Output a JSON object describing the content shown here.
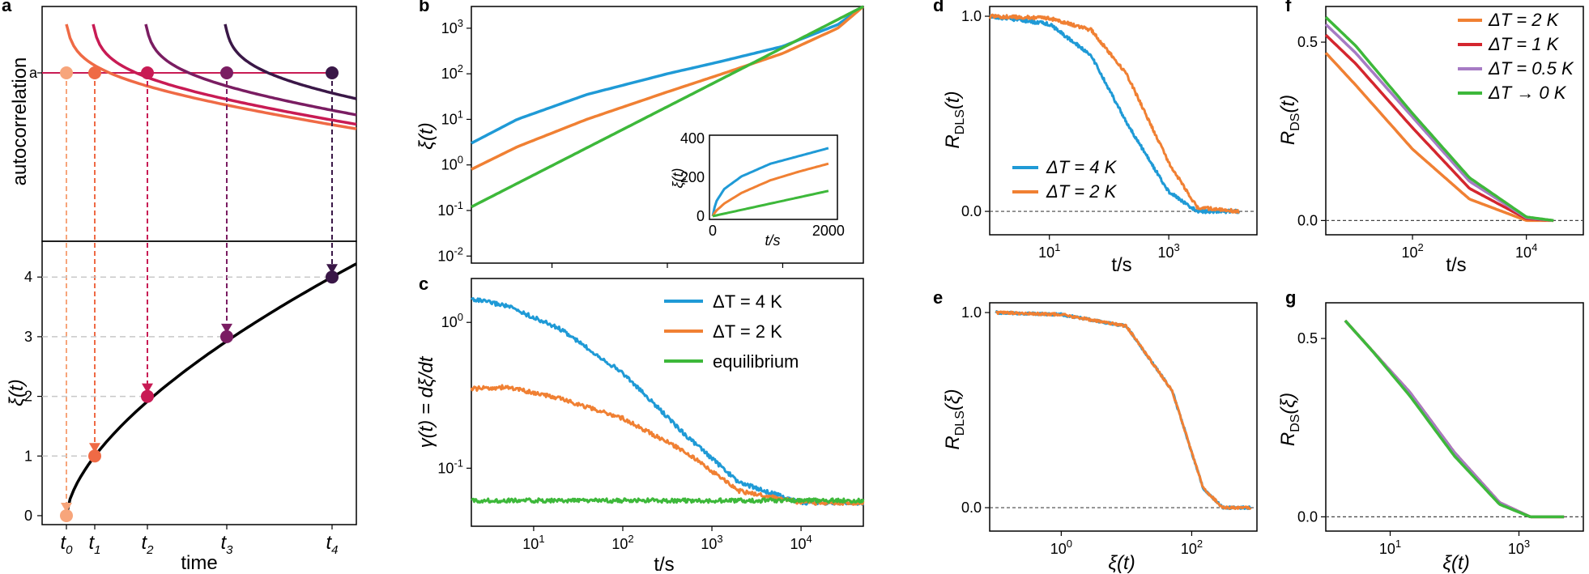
{
  "colors": {
    "blue": "#1f9ad6",
    "orange": "#f08033",
    "green": "#3db83a",
    "red": "#d4262e",
    "purple": "#a67bc4",
    "ramp": [
      "#f7a57b",
      "#ef6a45",
      "#c81b54",
      "#7a1d62",
      "#3a1747"
    ]
  },
  "chart_data": [
    {
      "id": "a",
      "type": "line",
      "panel_label": "a",
      "top": {
        "ylabel": "autocorrelation",
        "ytick": "a",
        "curves": [
          "t0",
          "t1",
          "t2",
          "t3",
          "t4"
        ]
      },
      "bottom": {
        "ylabel": "ξ(t)",
        "xlabel": "time",
        "yticks": [
          "0",
          "1",
          "2",
          "3",
          "4"
        ],
        "ylim": [
          -0.15,
          4.6
        ],
        "points": [
          {
            "t": "t0",
            "x": 0.0,
            "xi": 0
          },
          {
            "t": "t1",
            "x": 0.2,
            "xi": 1
          },
          {
            "t": "t2",
            "x": 0.6,
            "xi": 2
          },
          {
            "t": "t3",
            "x": 1.2,
            "xi": 3
          },
          {
            "t": "t4",
            "x": 2.0,
            "xi": 4
          }
        ],
        "xtick_labels": [
          {
            "base": "t",
            "sub": "0"
          },
          {
            "base": "t",
            "sub": "1"
          },
          {
            "base": "t",
            "sub": "2"
          },
          {
            "base": "t",
            "sub": "3"
          },
          {
            "base": "t",
            "sub": "4"
          }
        ]
      }
    },
    {
      "id": "b",
      "type": "line",
      "panel_label": "b",
      "xscale": "log",
      "yscale": "log",
      "xlim": [
        2,
        5000
      ],
      "ylim": [
        0.007,
        3000
      ],
      "ylabel": "ξ(t)",
      "ytick_labels": [
        "10-2",
        "10-1",
        "100",
        "101",
        "102",
        "103"
      ],
      "series": [
        {
          "name": "ΔT = 4 K",
          "color": "blue",
          "x": [
            2,
            5,
            20,
            100,
            300,
            1000,
            3000,
            5000
          ],
          "y": [
            3,
            10,
            35,
            100,
            190,
            400,
            1200,
            3000
          ]
        },
        {
          "name": "ΔT = 2 K",
          "color": "orange",
          "x": [
            2,
            5,
            20,
            100,
            300,
            1000,
            3000,
            5000
          ],
          "y": [
            0.8,
            2.5,
            10,
            40,
            100,
            280,
            1000,
            3000
          ]
        },
        {
          "name": "equilibrium",
          "color": "green",
          "x": [
            2,
            5000
          ],
          "y": [
            0.12,
            3000
          ]
        }
      ],
      "inset": {
        "xlim": [
          0,
          2100
        ],
        "ylim": [
          0,
          400
        ],
        "xticks": [
          "0",
          "2000"
        ],
        "yticks": [
          "0",
          "200",
          "400"
        ],
        "xlabel": "t/s",
        "ylabel": "ξ(t)",
        "series": [
          {
            "color": "blue",
            "x": [
              0,
              50,
              200,
              500,
              1000,
              1500,
              2000
            ],
            "y": [
              0,
              70,
              140,
              205,
              270,
              310,
              350
            ]
          },
          {
            "color": "orange",
            "x": [
              0,
              50,
              200,
              500,
              1000,
              1500,
              2000
            ],
            "y": [
              0,
              25,
              65,
              120,
              185,
              230,
              270
            ]
          },
          {
            "color": "green",
            "x": [
              0,
              2000
            ],
            "y": [
              0,
              130
            ]
          }
        ]
      }
    },
    {
      "id": "c",
      "type": "line",
      "panel_label": "c",
      "xscale": "log",
      "yscale": "log",
      "xlim": [
        2,
        50000
      ],
      "ylim": [
        0.04,
        2
      ],
      "xlabel": "t/s",
      "ylabel": "γ(t) = dξ/dt",
      "xtick_labels": [
        "101",
        "102",
        "103",
        "104"
      ],
      "ytick_labels": [
        "10-1",
        "100"
      ],
      "legend": {
        "position": "top-right",
        "entries": [
          "ΔT = 4 K",
          "ΔT = 2 K",
          "equilibrium"
        ]
      },
      "series": [
        {
          "name": "ΔT = 4 K",
          "color": "blue",
          "x": [
            2,
            5,
            20,
            100,
            500,
            2000,
            10000,
            50000
          ],
          "y": [
            1.45,
            1.3,
            0.9,
            0.45,
            0.17,
            0.08,
            0.058,
            0.058
          ]
        },
        {
          "name": "ΔT = 2 K",
          "color": "orange",
          "x": [
            2,
            5,
            20,
            100,
            500,
            2000,
            10000,
            50000
          ],
          "y": [
            0.35,
            0.36,
            0.3,
            0.22,
            0.13,
            0.07,
            0.058,
            0.058
          ]
        },
        {
          "name": "equilibrium",
          "color": "green",
          "x": [
            2,
            50000
          ],
          "y": [
            0.06,
            0.06
          ]
        }
      ]
    },
    {
      "id": "d",
      "type": "line",
      "panel_label": "d",
      "xscale": "log",
      "xlim": [
        1,
        30000
      ],
      "ylim": [
        -0.12,
        1.05
      ],
      "xlabel": "t/s",
      "ylabel": "RDLS(t)",
      "xtick_labels": [
        "101",
        "103"
      ],
      "ytick_labels": [
        "0.0",
        "1.0"
      ],
      "legend": {
        "position": "bottom-left",
        "entries": [
          "ΔT = 4 K",
          "ΔT = 2 K"
        ]
      },
      "series": [
        {
          "name": "ΔT = 4 K",
          "color": "blue",
          "x": [
            1,
            10,
            50,
            200,
            1000,
            3000,
            15000
          ],
          "y": [
            1.0,
            0.96,
            0.8,
            0.45,
            0.1,
            0.0,
            0.0
          ]
        },
        {
          "name": "ΔT = 2 K",
          "color": "orange",
          "x": [
            1,
            10,
            50,
            200,
            1000,
            3000,
            15000
          ],
          "y": [
            1.0,
            0.99,
            0.93,
            0.7,
            0.25,
            0.02,
            0.0
          ]
        }
      ]
    },
    {
      "id": "e",
      "type": "line",
      "panel_label": "e",
      "xscale": "log",
      "xlim": [
        0.08,
        1000
      ],
      "ylim": [
        -0.12,
        1.05
      ],
      "xlabel": "ξ(t)",
      "ylabel": "RDLS(ξ)",
      "xtick_labels": [
        "100",
        "102"
      ],
      "ytick_labels": [
        "0.0",
        "1.0"
      ],
      "series": [
        {
          "name": "ΔT = 4 K",
          "color": "blue",
          "x": [
            0.1,
            1,
            10,
            50,
            150,
            300,
            800
          ],
          "y": [
            1.0,
            0.99,
            0.93,
            0.6,
            0.1,
            0.0,
            0.0
          ]
        },
        {
          "name": "ΔT = 2 K",
          "color": "orange",
          "x": [
            0.1,
            1,
            10,
            50,
            150,
            300,
            800
          ],
          "y": [
            1.0,
            0.99,
            0.93,
            0.6,
            0.1,
            0.0,
            0.0
          ]
        }
      ]
    },
    {
      "id": "f",
      "type": "line",
      "panel_label": "f",
      "xscale": "log",
      "xlim": [
        3,
        100000
      ],
      "ylim": [
        -0.04,
        0.6
      ],
      "xlabel": "t/s",
      "ylabel": "RDS(t)",
      "xtick_labels": [
        "102",
        "104"
      ],
      "ytick_labels": [
        "0.0",
        "0.5"
      ],
      "legend": {
        "position": "top-right",
        "entries": [
          "ΔT = 2 K",
          "ΔT = 1 K",
          "ΔT = 0.5 K",
          "ΔT → 0 K"
        ]
      },
      "series": [
        {
          "name": "ΔT = 2 K",
          "color": "orange",
          "x": [
            3,
            10,
            100,
            1000,
            10000,
            30000
          ],
          "y": [
            0.47,
            0.38,
            0.2,
            0.06,
            0.0,
            0.0
          ]
        },
        {
          "name": "ΔT = 1 K",
          "color": "red",
          "x": [
            3,
            10,
            100,
            1000,
            10000,
            30000
          ],
          "y": [
            0.52,
            0.44,
            0.26,
            0.09,
            0.005,
            0.0
          ]
        },
        {
          "name": "ΔT = 0.5 K",
          "color": "purple",
          "x": [
            3,
            10,
            100,
            1000,
            10000,
            30000
          ],
          "y": [
            0.55,
            0.47,
            0.29,
            0.11,
            0.008,
            0.0
          ]
        },
        {
          "name": "ΔT → 0 K",
          "color": "green",
          "x": [
            3,
            10,
            100,
            1000,
            10000,
            30000
          ],
          "y": [
            0.57,
            0.49,
            0.3,
            0.12,
            0.01,
            0.0
          ]
        }
      ]
    },
    {
      "id": "g",
      "type": "line",
      "panel_label": "g",
      "xscale": "log",
      "xlim": [
        1,
        10000
      ],
      "ylim": [
        -0.04,
        0.6
      ],
      "xlabel": "ξ(t)",
      "ylabel": "RDS(ξ)",
      "xtick_labels": [
        "101",
        "103"
      ],
      "ytick_labels": [
        "0.0",
        "0.5"
      ],
      "series": [
        {
          "name": "ΔT = 2 K",
          "color": "orange",
          "x": [
            2,
            5,
            20,
            100,
            500,
            1500,
            5000
          ],
          "y": [
            0.55,
            0.47,
            0.35,
            0.18,
            0.04,
            0.0,
            0.0
          ]
        },
        {
          "name": "ΔT = 1 K",
          "color": "red",
          "x": [
            2,
            5,
            20,
            100,
            500,
            1500,
            5000
          ],
          "y": [
            0.55,
            0.47,
            0.35,
            0.18,
            0.04,
            0.0,
            0.0
          ]
        },
        {
          "name": "ΔT = 0.5 K",
          "color": "purple",
          "x": [
            2,
            5,
            20,
            100,
            500,
            1500,
            5000
          ],
          "y": [
            0.55,
            0.47,
            0.35,
            0.18,
            0.04,
            0.0,
            0.0
          ]
        },
        {
          "name": "ΔT → 0 K",
          "color": "green",
          "x": [
            2,
            5,
            20,
            100,
            500,
            1500,
            5000
          ],
          "y": [
            0.55,
            0.47,
            0.34,
            0.17,
            0.035,
            0.0,
            0.0
          ]
        }
      ]
    }
  ]
}
